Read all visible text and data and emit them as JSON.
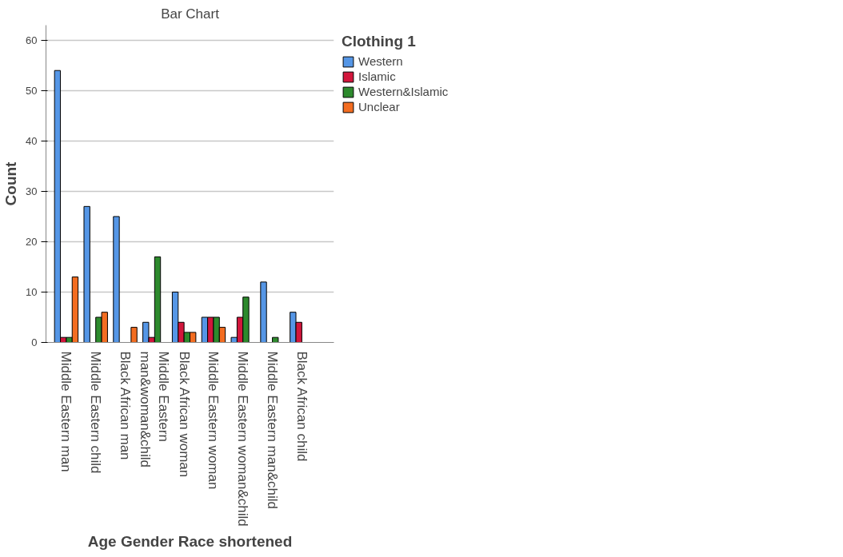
{
  "chart_data": {
    "type": "bar",
    "title": "Bar Chart",
    "xlabel": "Age Gender Race shortened",
    "ylabel": "Count",
    "legend_title": "Clothing 1",
    "categories": [
      "Middle Eastern man",
      "Middle Eastern child",
      "Black African man",
      "Middle Eastern man&woman&child",
      "Black African woman",
      "Middle Eastern woman",
      "Middle Eastern woman&child",
      "Middle Eastern man&child",
      "Black African child"
    ],
    "series": [
      {
        "name": "Western",
        "color": "#5596e6",
        "values": [
          54,
          27,
          25,
          4,
          10,
          5,
          1,
          12,
          6
        ]
      },
      {
        "name": "Islamic",
        "color": "#d2163c",
        "values": [
          1,
          null,
          null,
          1,
          4,
          5,
          5,
          null,
          4
        ]
      },
      {
        "name": "Western&Islamic",
        "color": "#2d8a2d",
        "values": [
          1,
          5,
          null,
          17,
          2,
          5,
          9,
          1,
          null
        ]
      },
      {
        "name": "Unclear",
        "color": "#f36d21",
        "values": [
          13,
          6,
          3,
          null,
          2,
          3,
          null,
          null,
          null
        ]
      }
    ],
    "ylim": [
      0,
      63
    ],
    "yticks": [
      0,
      10,
      20,
      30,
      40,
      50,
      60
    ],
    "grid": "y",
    "legend": "right"
  }
}
